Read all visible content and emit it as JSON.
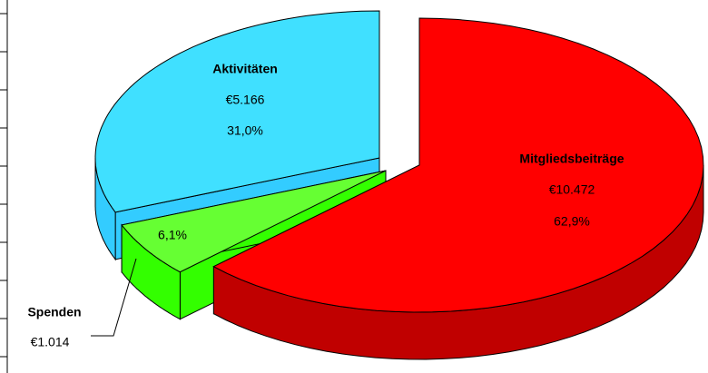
{
  "chart_data": {
    "type": "pie",
    "categories": [
      "Mitgliedsbeiträge",
      "Spenden",
      "Aktivitäten"
    ],
    "values": [
      10472,
      1014,
      5166
    ],
    "value_labels": [
      "€10.472",
      "€1.014",
      "€5.166"
    ],
    "percent_labels": [
      "62,9%",
      "6,1%",
      "31,0%"
    ],
    "colors": [
      "#ff0000",
      "#66ff33",
      "#40e0ff"
    ],
    "side_colors": [
      "#c00000",
      "#33ff00",
      "#33ccff"
    ]
  }
}
